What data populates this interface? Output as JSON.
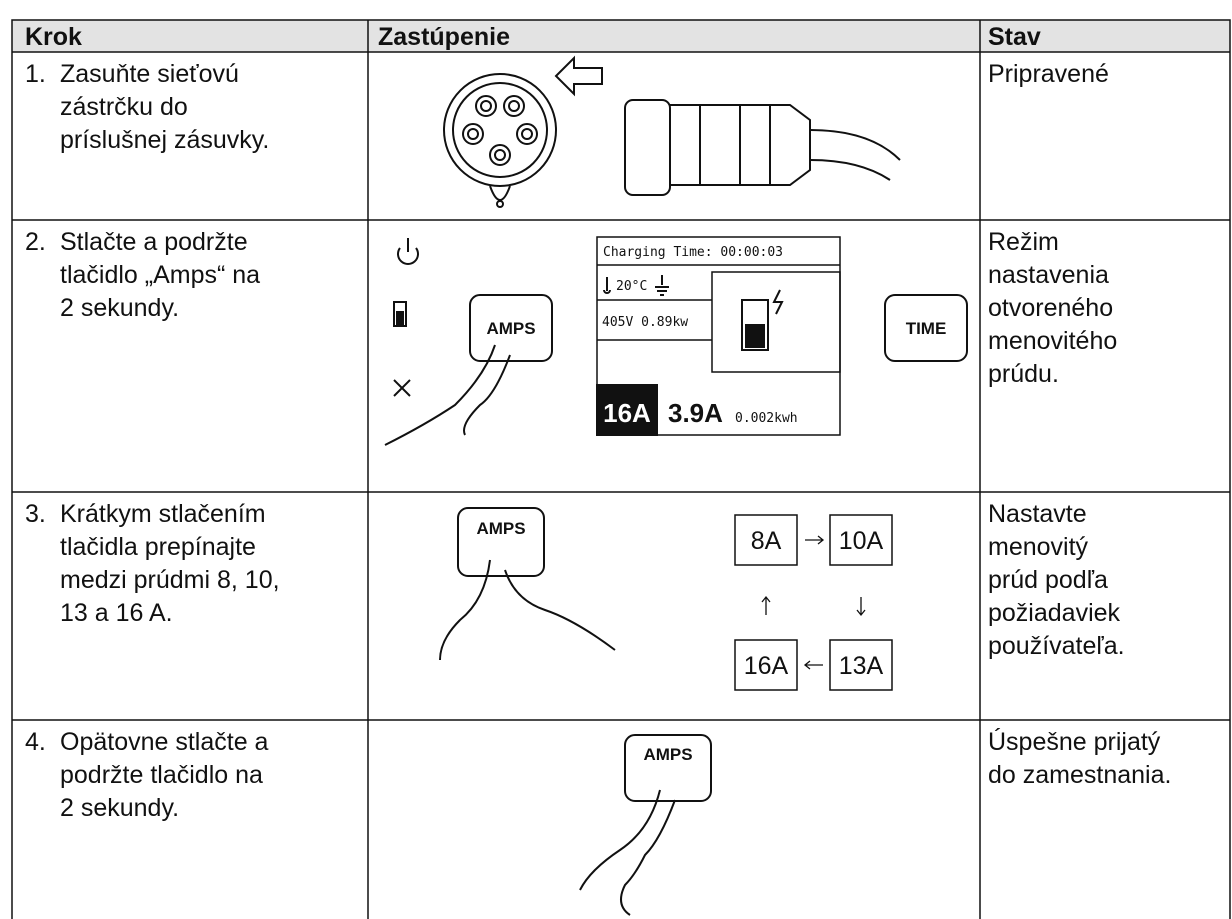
{
  "table": {
    "header": [
      "Krok",
      "Zastúpenie",
      "Stav"
    ],
    "rows": [
      {
        "number": "1.",
        "step": [
          "Zasuňte sieťovú",
          "zástrčku do",
          "príslušnej zásuvky."
        ],
        "status": [
          "Pripravené"
        ]
      },
      {
        "number": "2.",
        "step": [
          "Stlačte a podržte",
          "tlačidlo „Amps“ na",
          "2 sekundy."
        ],
        "status": [
          "Režim",
          "nastavenia",
          "otvoreného",
          "menovitého",
          "prúdu."
        ],
        "illustration": {
          "display": {
            "charging_time": "Charging Time: 00:00:03",
            "temperature": "20°C",
            "power": "405V 0.89kw",
            "set_current": "16A",
            "current": "3.9A",
            "energy": "0.002kwh"
          },
          "buttons": [
            "AMPS",
            "TIME"
          ]
        }
      },
      {
        "number": "3.",
        "step": [
          "Krátkym stlačením",
          "tlačidla prepínajte",
          "medzi prúdmi 8, 10,",
          "13 a 16 A."
        ],
        "status": [
          "Nastavte",
          "menovitý",
          "prúd podľa",
          "požiadaviek",
          "používateľa."
        ],
        "illustration": {
          "buttons": [
            "AMPS"
          ],
          "currents": [
            "8A",
            "10A",
            "13A",
            "16A"
          ]
        }
      },
      {
        "number": "4.",
        "step": [
          "Opätovne stlačte a",
          "podržte tlačidlo na",
          "2 sekundy."
        ],
        "status": [
          "Úspešne prijatý",
          "do zamestnania."
        ],
        "illustration": {
          "buttons": [
            "AMPS"
          ]
        }
      }
    ]
  }
}
